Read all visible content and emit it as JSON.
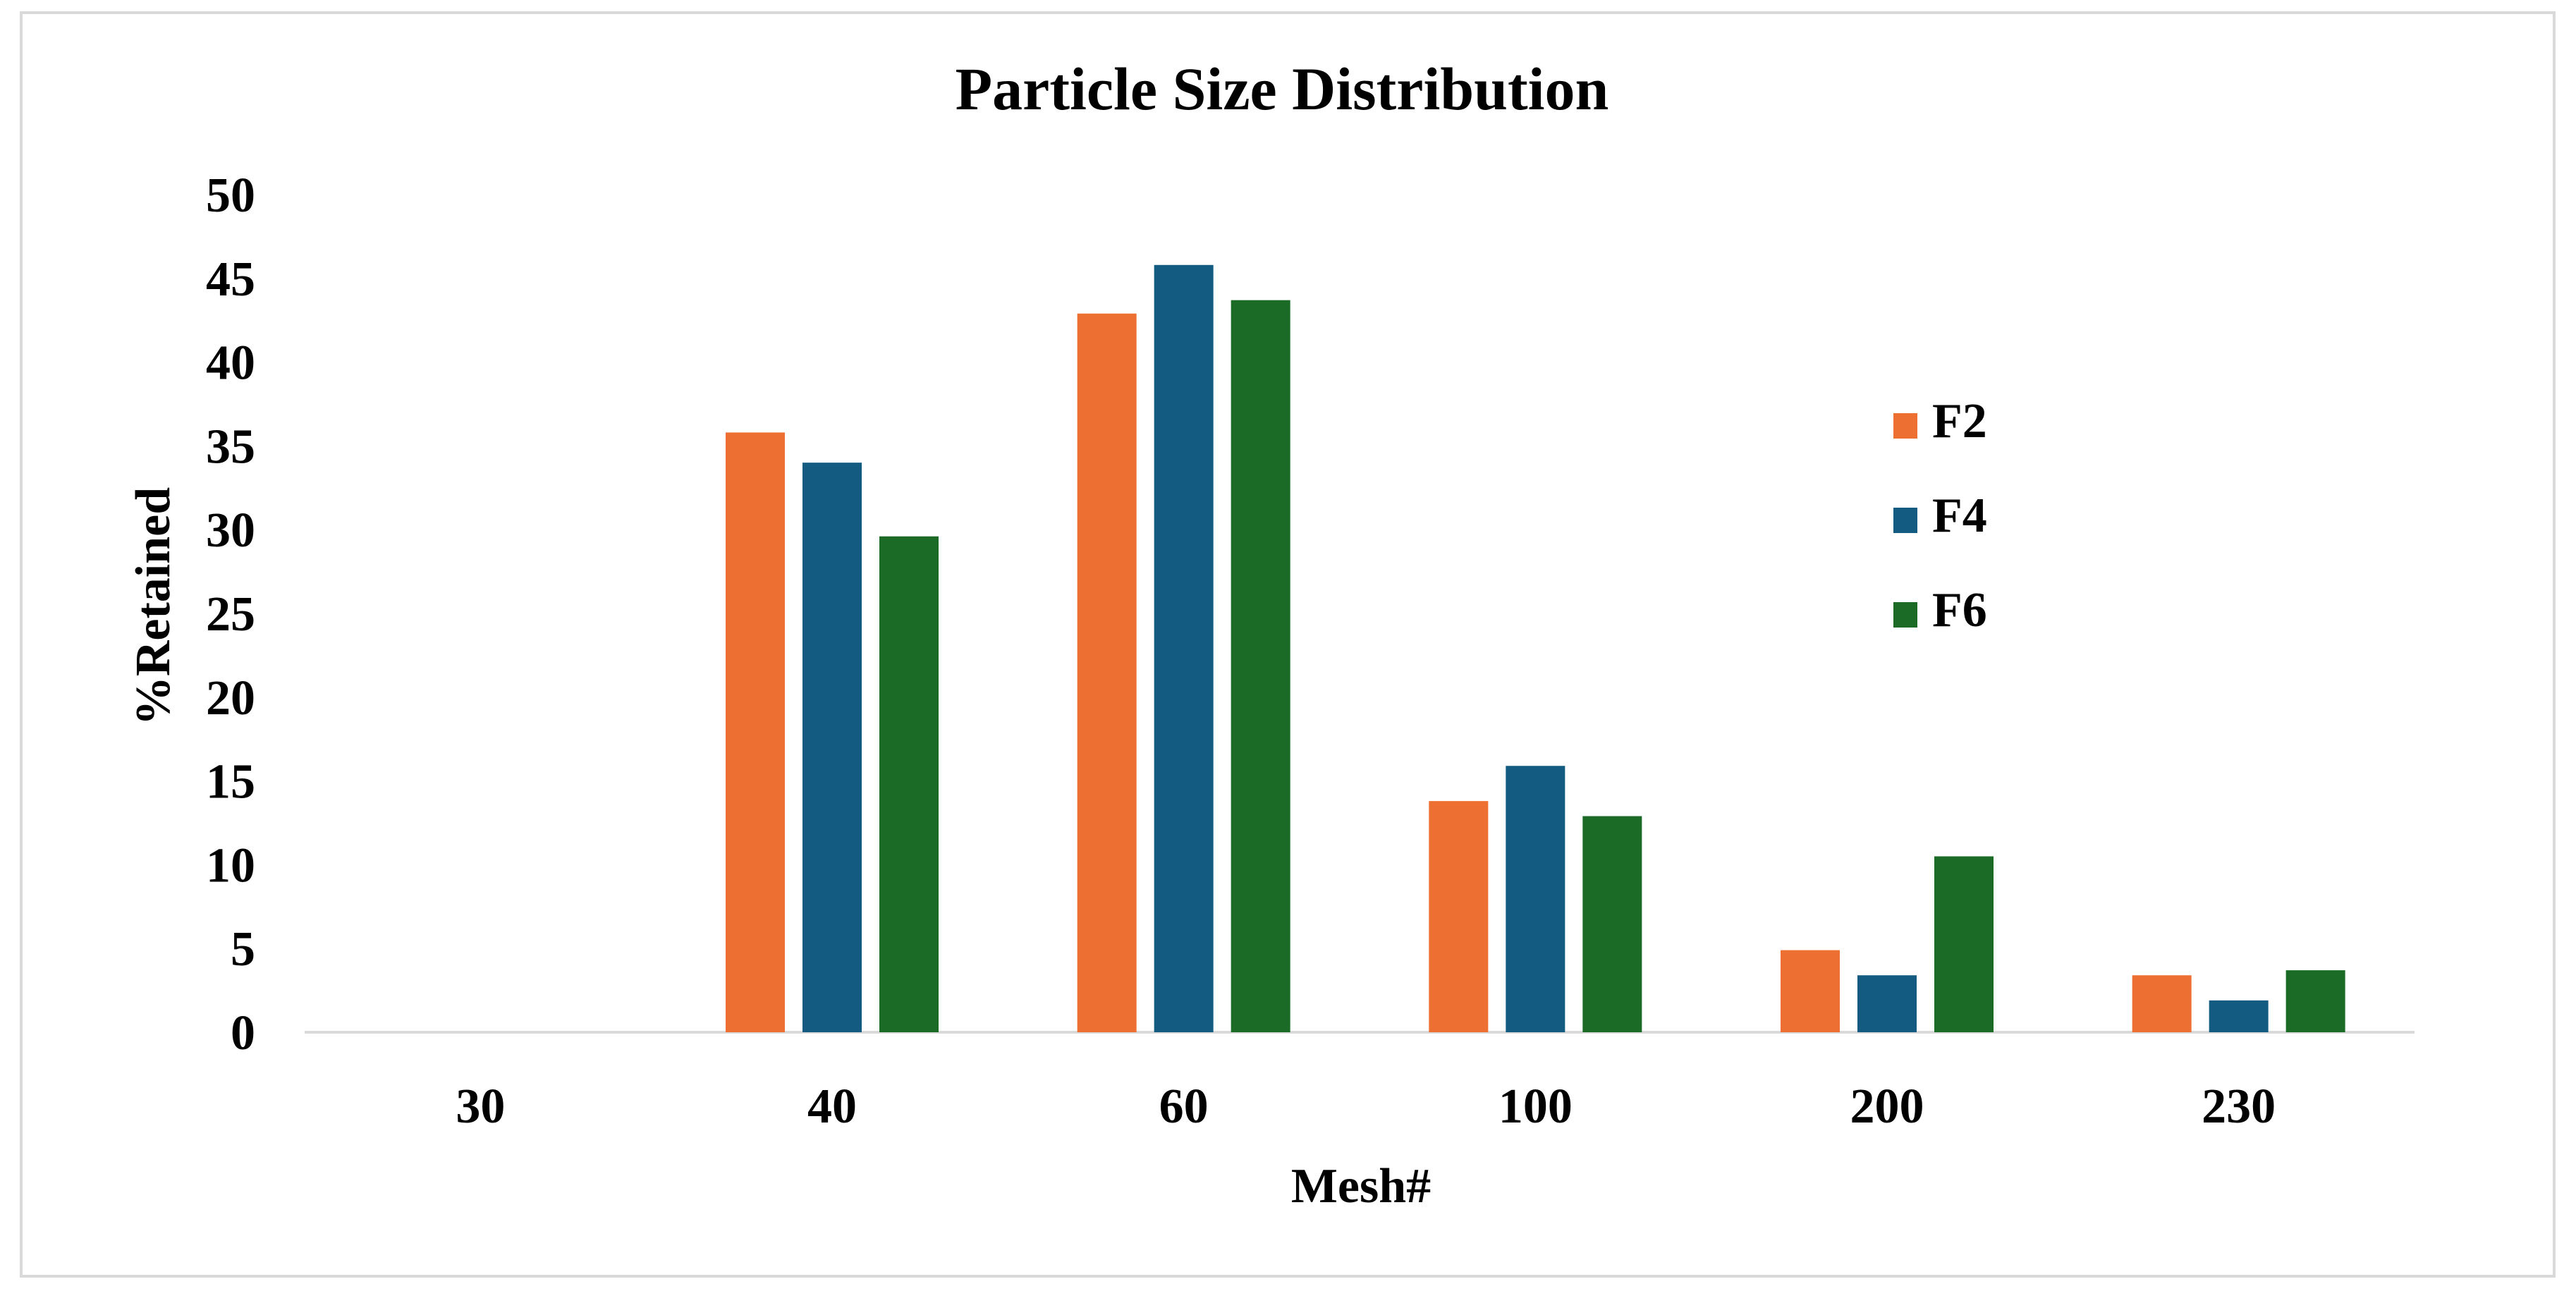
{
  "chart_data": {
    "type": "bar",
    "title": "Particle Size Distribution",
    "xlabel": "Mesh#",
    "ylabel": "%Retained",
    "categories": [
      "30",
      "40",
      "60",
      "100",
      "200",
      "230"
    ],
    "series": [
      {
        "name": "F2",
        "color": "#ED7032",
        "values": [
          0,
          35.8,
          42.9,
          13.8,
          4.9,
          3.4
        ]
      },
      {
        "name": "F4",
        "color": "#145B82",
        "values": [
          0,
          34,
          45.8,
          15.9,
          3.4,
          1.9
        ]
      },
      {
        "name": "F6",
        "color": "#1B6B26",
        "values": [
          0,
          29.6,
          43.7,
          12.9,
          10.5,
          3.7
        ]
      }
    ],
    "ylim": [
      0,
      50
    ],
    "yticks": [
      0,
      5,
      10,
      15,
      20,
      25,
      30,
      35,
      40,
      45,
      50
    ],
    "grid": false,
    "legend_position": "right"
  }
}
